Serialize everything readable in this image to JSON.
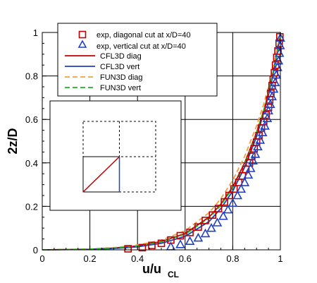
{
  "chart_data": {
    "type": "line",
    "xlabel": "u/u",
    "xlabel_sub": "CL",
    "ylabel": "2z/D",
    "xlim": [
      0,
      1
    ],
    "ylim": [
      0,
      1
    ],
    "x_ticks": [
      "0",
      "0.2",
      "0.4",
      "0.6",
      "0.8",
      "1"
    ],
    "y_ticks": [
      "0",
      "0.2",
      "0.4",
      "0.6",
      "0.8",
      "1"
    ],
    "grid": true,
    "legend_position": "top-left",
    "series": [
      {
        "name": "exp, diagonal cut at x/D=40",
        "kind": "markers",
        "marker": "square",
        "color": "#c00000",
        "points": [
          [
            0.36,
            0.005
          ],
          [
            0.42,
            0.01
          ],
          [
            0.46,
            0.02
          ],
          [
            0.5,
            0.03
          ],
          [
            0.54,
            0.045
          ],
          [
            0.58,
            0.065
          ],
          [
            0.62,
            0.08
          ],
          [
            0.655,
            0.105
          ],
          [
            0.685,
            0.135
          ],
          [
            0.715,
            0.16
          ],
          [
            0.74,
            0.19
          ],
          [
            0.765,
            0.22
          ],
          [
            0.785,
            0.25
          ],
          [
            0.805,
            0.28
          ],
          [
            0.825,
            0.31
          ],
          [
            0.84,
            0.34
          ],
          [
            0.855,
            0.37
          ],
          [
            0.87,
            0.4
          ],
          [
            0.88,
            0.43
          ],
          [
            0.89,
            0.465
          ],
          [
            0.9,
            0.495
          ],
          [
            0.91,
            0.525
          ],
          [
            0.92,
            0.56
          ],
          [
            0.93,
            0.59
          ],
          [
            0.94,
            0.62
          ],
          [
            0.95,
            0.655
          ],
          [
            0.955,
            0.69
          ],
          [
            0.96,
            0.72
          ],
          [
            0.965,
            0.755
          ],
          [
            0.97,
            0.785
          ],
          [
            0.975,
            0.815
          ],
          [
            0.98,
            0.85
          ],
          [
            0.985,
            0.885
          ],
          [
            0.99,
            0.915
          ],
          [
            0.995,
            0.95
          ],
          [
            0.998,
            0.98
          ]
        ]
      },
      {
        "name": "exp, vertical cut at x/D=40",
        "kind": "markers",
        "marker": "triangle",
        "color": "#2040c0",
        "points": [
          [
            0.54,
            0.015
          ],
          [
            0.58,
            0.025
          ],
          [
            0.62,
            0.04
          ],
          [
            0.655,
            0.055
          ],
          [
            0.685,
            0.075
          ],
          [
            0.71,
            0.1
          ],
          [
            0.735,
            0.125
          ],
          [
            0.76,
            0.155
          ],
          [
            0.78,
            0.185
          ],
          [
            0.8,
            0.215
          ],
          [
            0.82,
            0.25
          ],
          [
            0.835,
            0.28
          ],
          [
            0.85,
            0.31
          ],
          [
            0.865,
            0.345
          ],
          [
            0.875,
            0.375
          ],
          [
            0.885,
            0.41
          ],
          [
            0.895,
            0.44
          ],
          [
            0.905,
            0.475
          ],
          [
            0.915,
            0.505
          ],
          [
            0.925,
            0.54
          ],
          [
            0.935,
            0.57
          ],
          [
            0.945,
            0.605
          ],
          [
            0.95,
            0.64
          ],
          [
            0.958,
            0.67
          ],
          [
            0.965,
            0.705
          ],
          [
            0.972,
            0.74
          ],
          [
            0.978,
            0.77
          ],
          [
            0.983,
            0.805
          ],
          [
            0.988,
            0.84
          ],
          [
            0.992,
            0.87
          ],
          [
            0.996,
            0.905
          ],
          [
            0.999,
            0.94
          ],
          [
            1.0,
            0.975
          ]
        ]
      },
      {
        "name": "CFL3D diag",
        "kind": "line",
        "dash": "solid",
        "color": "#c00000",
        "points": [
          [
            0.0,
            0.0
          ],
          [
            0.2,
            0.003
          ],
          [
            0.3,
            0.008
          ],
          [
            0.4,
            0.018
          ],
          [
            0.5,
            0.038
          ],
          [
            0.6,
            0.075
          ],
          [
            0.7,
            0.15
          ],
          [
            0.75,
            0.21
          ],
          [
            0.8,
            0.29
          ],
          [
            0.85,
            0.4
          ],
          [
            0.9,
            0.54
          ],
          [
            0.93,
            0.64
          ],
          [
            0.95,
            0.72
          ],
          [
            0.97,
            0.82
          ],
          [
            0.98,
            0.87
          ],
          [
            0.99,
            0.93
          ],
          [
            1.0,
            1.0
          ]
        ]
      },
      {
        "name": "CFL3D vert",
        "kind": "line",
        "dash": "solid",
        "color": "#2040c0",
        "points": [
          [
            0.0,
            0.0
          ],
          [
            0.2,
            0.002
          ],
          [
            0.3,
            0.006
          ],
          [
            0.4,
            0.014
          ],
          [
            0.5,
            0.03
          ],
          [
            0.6,
            0.062
          ],
          [
            0.7,
            0.13
          ],
          [
            0.75,
            0.19
          ],
          [
            0.8,
            0.27
          ],
          [
            0.85,
            0.38
          ],
          [
            0.9,
            0.52
          ],
          [
            0.93,
            0.63
          ],
          [
            0.95,
            0.71
          ],
          [
            0.97,
            0.81
          ],
          [
            0.98,
            0.87
          ],
          [
            0.99,
            0.93
          ],
          [
            1.0,
            1.0
          ]
        ]
      },
      {
        "name": "FUN3D diag",
        "kind": "line",
        "dash": "dashed",
        "color": "#f0a040",
        "points": [
          [
            0.0,
            0.0
          ],
          [
            0.2,
            0.004
          ],
          [
            0.3,
            0.01
          ],
          [
            0.4,
            0.022
          ],
          [
            0.5,
            0.044
          ],
          [
            0.6,
            0.088
          ],
          [
            0.7,
            0.17
          ],
          [
            0.75,
            0.235
          ],
          [
            0.8,
            0.32
          ],
          [
            0.85,
            0.43
          ],
          [
            0.9,
            0.57
          ],
          [
            0.93,
            0.67
          ],
          [
            0.95,
            0.75
          ],
          [
            0.97,
            0.84
          ],
          [
            0.98,
            0.89
          ],
          [
            0.99,
            0.94
          ],
          [
            1.0,
            1.0
          ]
        ]
      },
      {
        "name": "FUN3D vert",
        "kind": "line",
        "dash": "dashed",
        "color": "#20b020",
        "points": [
          [
            0.0,
            0.0
          ],
          [
            0.2,
            0.003
          ],
          [
            0.3,
            0.008
          ],
          [
            0.4,
            0.017
          ],
          [
            0.5,
            0.036
          ],
          [
            0.6,
            0.072
          ],
          [
            0.7,
            0.145
          ],
          [
            0.75,
            0.205
          ],
          [
            0.8,
            0.285
          ],
          [
            0.85,
            0.395
          ],
          [
            0.9,
            0.535
          ],
          [
            0.93,
            0.64
          ],
          [
            0.95,
            0.72
          ],
          [
            0.97,
            0.82
          ],
          [
            0.98,
            0.87
          ],
          [
            0.99,
            0.93
          ],
          [
            1.0,
            1.0
          ]
        ]
      }
    ]
  }
}
